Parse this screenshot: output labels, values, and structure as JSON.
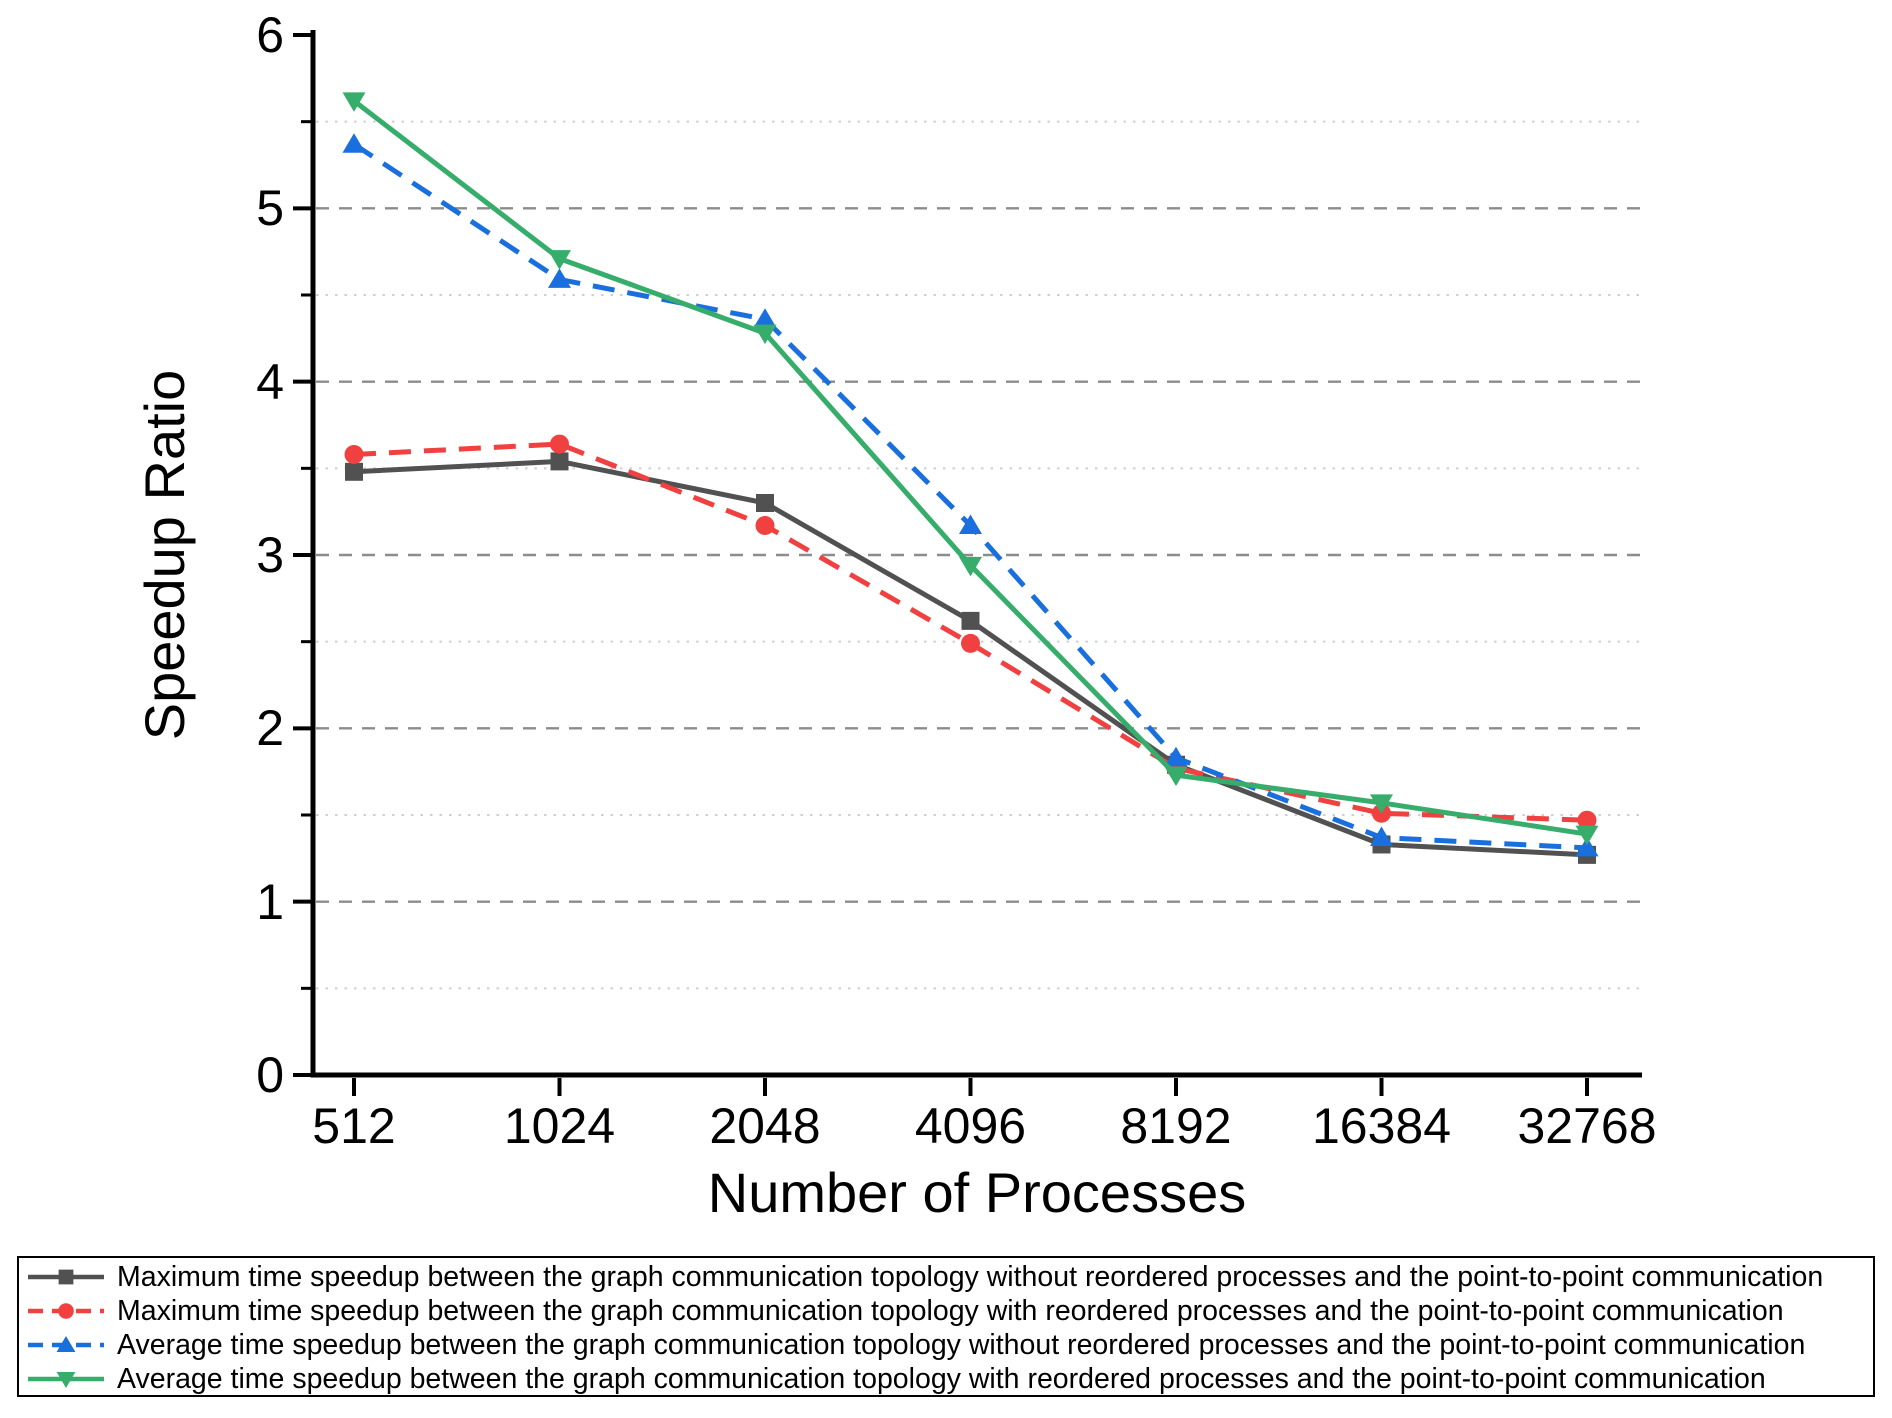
{
  "figure": {
    "background": "#ffffff",
    "axis_color": "#000000",
    "major_grid_color": "#8c8c8c",
    "minor_grid_color": "#cfcfcf"
  },
  "chart_data": {
    "type": "line",
    "title": "",
    "xlabel": "Number of Processes",
    "ylabel": "Speedup Ratio",
    "categories": [
      512,
      1024,
      2048,
      4096,
      8192,
      16384,
      32768
    ],
    "xticks": [
      "512",
      "1024",
      "2048",
      "4096",
      "8192",
      "16384",
      "32768"
    ],
    "yticks": [
      "0",
      "1",
      "2",
      "3",
      "4",
      "5",
      "6"
    ],
    "ylim": [
      0,
      6
    ],
    "ytick_step": 1,
    "minor_ytick_step": 0.5,
    "grid": {
      "major": "dashed",
      "minor": "dotted",
      "vertical": false
    },
    "legend_position": "bottom",
    "series": [
      {
        "name": "max-no-reorder",
        "label": "Maximum time speedup between the graph communication topology without reordered processes and the point-to-point communication",
        "color": "#515151",
        "line_style": "solid",
        "marker": "square",
        "values": [
          3.48,
          3.54,
          3.3,
          2.62,
          1.79,
          1.33,
          1.27
        ]
      },
      {
        "name": "max-reorder",
        "label": "Maximum time speedup between the graph communication topology with reordered processes and the point-to-point communication",
        "color": "#F14040",
        "line_style": "dashed",
        "marker": "circle",
        "values": [
          3.58,
          3.64,
          3.17,
          2.49,
          1.77,
          1.51,
          1.47
        ]
      },
      {
        "name": "avg-no-reorder",
        "label": "Average time speedup between the graph communication topology without reordered processes and the point-to-point communication",
        "color": "#1A6FDF",
        "line_style": "dashed",
        "marker": "triangle-up",
        "values": [
          5.37,
          4.59,
          4.36,
          3.17,
          1.83,
          1.37,
          1.31
        ]
      },
      {
        "name": "avg-reorder",
        "label": "Average time speedup between the graph communication topology with reordered processes and the point-to-point communication",
        "color": "#37AD6B",
        "line_style": "solid",
        "marker": "triangle-down",
        "values": [
          5.62,
          4.71,
          4.28,
          2.94,
          1.73,
          1.57,
          1.39
        ]
      }
    ]
  }
}
